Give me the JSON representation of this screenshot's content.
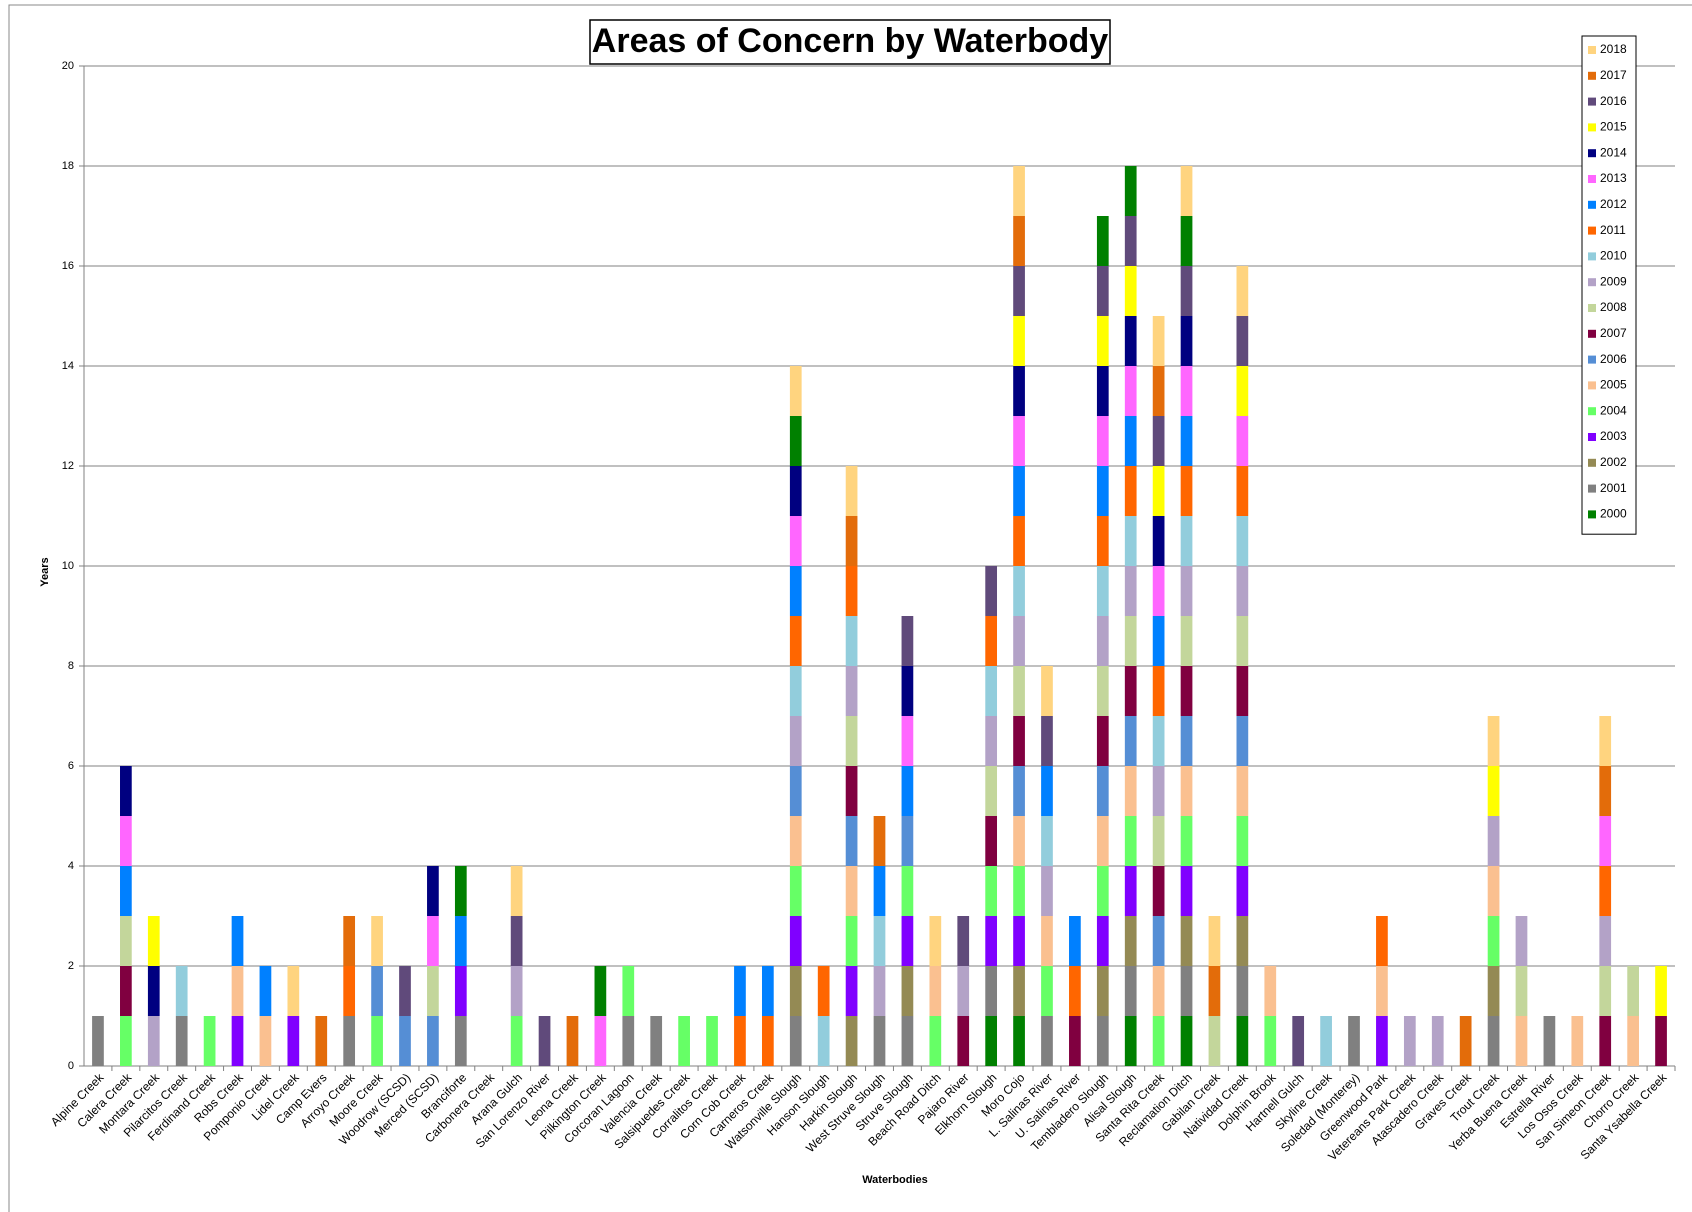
{
  "chart_data": {
    "type": "stacked_bar",
    "title": "Areas of Concern by Waterbody",
    "x_label": "Waterbodies",
    "y_label": "Years",
    "categories": [
      "Alpine Creek",
      "Calera Creek",
      "Montara Creek",
      "Pilarcitos Creek",
      "Ferdinand Creek",
      "Robs Creek",
      "Pomponio Creek",
      "Lidel Creek",
      "Camp Evers",
      "Arroyo Creek",
      "Moore Creek",
      "Woodrow (SCSD)",
      "Merced (SCSD)",
      "Branciforte",
      "Carbonera Creek",
      "Arana Gulch",
      "San Lorenzo River",
      "Leona Creek",
      "Pilkington Creek",
      "Corcoran Lagoon",
      "Valencia Creek",
      "Salsipuedes Creek",
      "Corralitos Creek",
      "Corn Cob Creek",
      "Carneros Creek",
      "Watsonville Slough",
      "Hanson Slough",
      "Harkin Slough",
      "West Struve Slough",
      "Struve Slough",
      "Beach Road Ditch",
      "Pajaro River",
      "Elkhorn Slough",
      "Moro Cojo",
      "L. Salinas River",
      "U. Salinas River",
      "Tembladero Slough",
      "Alisal Slough",
      "Santa Rita Creek",
      "Reclamation Ditch",
      "Gabilan Creek",
      "Natividad Creek",
      "Dolphin Brook",
      "Hartnell Gulch",
      "Skyline Creek",
      "Soledad (Monterey)",
      "Greenwood Park",
      "Vetereans Park Creek",
      "Atascadero Creek",
      "Graves Creek",
      "Trout Creek",
      "Yerba Buena Creek",
      "Estrella River",
      "Los Osos Creek",
      "San Simeon Creek",
      "Chorro Creek",
      "Santa Ysabella Creek"
    ],
    "series": [
      {
        "name": "2000",
        "color": "#008000",
        "values": [
          0,
          0,
          0,
          0,
          0,
          0,
          0,
          0,
          0,
          0,
          0,
          0,
          0,
          0,
          0,
          0,
          0,
          0,
          0,
          0,
          0,
          0,
          0,
          0,
          0,
          0,
          0,
          0,
          0,
          0,
          0,
          0,
          1,
          1,
          0,
          0,
          0,
          1,
          0,
          1,
          0,
          1,
          0,
          0,
          0,
          0,
          0,
          0,
          0,
          0,
          0,
          0,
          0,
          0,
          0,
          0,
          0
        ]
      },
      {
        "name": "2001",
        "color": "#808080",
        "values": [
          1,
          0,
          0,
          1,
          0,
          0,
          0,
          0,
          0,
          1,
          0,
          0,
          0,
          1,
          0,
          0,
          0,
          0,
          0,
          1,
          1,
          0,
          0,
          0,
          0,
          1,
          0,
          0,
          1,
          1,
          0,
          0,
          1,
          0,
          1,
          0,
          1,
          1,
          0,
          1,
          0,
          1,
          0,
          0,
          0,
          1,
          0,
          0,
          0,
          0,
          1,
          0,
          1,
          0,
          0,
          0,
          0
        ]
      },
      {
        "name": "2002",
        "color": "#948A54",
        "values": [
          0,
          0,
          0,
          0,
          0,
          0,
          0,
          0,
          0,
          0,
          0,
          0,
          0,
          0,
          0,
          0,
          0,
          0,
          0,
          0,
          0,
          0,
          0,
          0,
          0,
          1,
          0,
          1,
          0,
          1,
          0,
          0,
          0,
          1,
          0,
          0,
          1,
          1,
          0,
          1,
          0,
          1,
          0,
          0,
          0,
          0,
          0,
          0,
          0,
          0,
          1,
          0,
          0,
          0,
          0,
          0,
          0
        ]
      },
      {
        "name": "2003",
        "color": "#8000FF",
        "values": [
          0,
          0,
          0,
          0,
          0,
          1,
          0,
          1,
          0,
          0,
          0,
          0,
          0,
          1,
          0,
          0,
          0,
          0,
          0,
          0,
          0,
          0,
          0,
          0,
          0,
          1,
          0,
          1,
          0,
          1,
          0,
          0,
          1,
          1,
          0,
          0,
          1,
          1,
          0,
          1,
          0,
          1,
          0,
          0,
          0,
          0,
          1,
          0,
          0,
          0,
          0,
          0,
          0,
          0,
          0,
          0,
          0
        ]
      },
      {
        "name": "2004",
        "color": "#66FF66",
        "values": [
          0,
          1,
          0,
          0,
          1,
          0,
          0,
          0,
          0,
          0,
          1,
          0,
          0,
          0,
          0,
          1,
          0,
          0,
          0,
          1,
          0,
          1,
          1,
          0,
          0,
          1,
          0,
          1,
          0,
          1,
          1,
          0,
          1,
          1,
          1,
          0,
          1,
          1,
          1,
          1,
          0,
          1,
          1,
          0,
          0,
          0,
          0,
          0,
          0,
          0,
          1,
          0,
          0,
          0,
          0,
          0,
          0
        ]
      },
      {
        "name": "2005",
        "color": "#FAC090",
        "values": [
          0,
          0,
          0,
          0,
          0,
          1,
          1,
          0,
          0,
          0,
          0,
          0,
          0,
          0,
          0,
          0,
          0,
          0,
          0,
          0,
          0,
          0,
          0,
          0,
          0,
          1,
          0,
          1,
          0,
          0,
          1,
          0,
          0,
          1,
          1,
          0,
          1,
          1,
          1,
          1,
          0,
          1,
          1,
          0,
          0,
          0,
          1,
          0,
          0,
          0,
          1,
          1,
          0,
          1,
          0,
          1,
          0
        ]
      },
      {
        "name": "2006",
        "color": "#558ED5",
        "values": [
          0,
          0,
          0,
          0,
          0,
          0,
          0,
          0,
          0,
          0,
          1,
          1,
          1,
          0,
          0,
          0,
          0,
          0,
          0,
          0,
          0,
          0,
          0,
          0,
          0,
          1,
          0,
          1,
          0,
          1,
          0,
          0,
          0,
          1,
          0,
          0,
          1,
          1,
          1,
          1,
          0,
          1,
          0,
          0,
          0,
          0,
          0,
          0,
          0,
          0,
          0,
          0,
          0,
          0,
          0,
          0,
          0
        ]
      },
      {
        "name": "2007",
        "color": "#800040",
        "values": [
          0,
          1,
          0,
          0,
          0,
          0,
          0,
          0,
          0,
          0,
          0,
          0,
          0,
          0,
          0,
          0,
          0,
          0,
          0,
          0,
          0,
          0,
          0,
          0,
          0,
          0,
          0,
          1,
          0,
          0,
          0,
          1,
          1,
          1,
          0,
          1,
          1,
          1,
          1,
          1,
          0,
          1,
          0,
          0,
          0,
          0,
          0,
          0,
          0,
          0,
          0,
          0,
          0,
          0,
          1,
          0,
          1
        ]
      },
      {
        "name": "2008",
        "color": "#C3D69B",
        "values": [
          0,
          1,
          0,
          0,
          0,
          0,
          0,
          0,
          0,
          0,
          0,
          0,
          1,
          0,
          0,
          0,
          0,
          0,
          0,
          0,
          0,
          0,
          0,
          0,
          0,
          0,
          0,
          1,
          0,
          0,
          0,
          0,
          1,
          1,
          0,
          0,
          1,
          1,
          1,
          1,
          1,
          1,
          0,
          0,
          0,
          0,
          0,
          0,
          0,
          0,
          0,
          1,
          0,
          0,
          1,
          1,
          0
        ]
      },
      {
        "name": "2009",
        "color": "#B3A2C7",
        "values": [
          0,
          0,
          1,
          0,
          0,
          0,
          0,
          0,
          0,
          0,
          0,
          0,
          0,
          0,
          0,
          1,
          0,
          0,
          0,
          0,
          0,
          0,
          0,
          0,
          0,
          1,
          0,
          1,
          1,
          0,
          0,
          1,
          1,
          1,
          1,
          0,
          1,
          1,
          1,
          1,
          0,
          1,
          0,
          0,
          0,
          0,
          0,
          1,
          1,
          0,
          1,
          1,
          0,
          0,
          1,
          0,
          0
        ]
      },
      {
        "name": "2010",
        "color": "#92CDDC",
        "values": [
          0,
          0,
          0,
          1,
          0,
          0,
          0,
          0,
          0,
          0,
          0,
          0,
          0,
          0,
          0,
          0,
          0,
          0,
          0,
          0,
          0,
          0,
          0,
          0,
          0,
          1,
          1,
          1,
          1,
          0,
          0,
          0,
          1,
          1,
          1,
          0,
          1,
          1,
          1,
          1,
          0,
          1,
          0,
          0,
          1,
          0,
          0,
          0,
          0,
          0,
          0,
          0,
          0,
          0,
          0,
          0,
          0
        ]
      },
      {
        "name": "2011",
        "color": "#FF6600",
        "values": [
          0,
          0,
          0,
          0,
          0,
          0,
          0,
          0,
          0,
          1,
          0,
          0,
          0,
          0,
          0,
          0,
          0,
          0,
          0,
          0,
          0,
          0,
          0,
          1,
          1,
          1,
          1,
          1,
          0,
          0,
          0,
          0,
          1,
          1,
          0,
          1,
          1,
          1,
          1,
          1,
          0,
          1,
          0,
          0,
          0,
          0,
          1,
          0,
          0,
          0,
          0,
          0,
          0,
          0,
          1,
          0,
          0
        ]
      },
      {
        "name": "2012",
        "color": "#0080FF",
        "values": [
          0,
          1,
          0,
          0,
          0,
          1,
          1,
          0,
          0,
          0,
          0,
          0,
          0,
          1,
          0,
          0,
          0,
          0,
          0,
          0,
          0,
          0,
          0,
          1,
          1,
          1,
          0,
          0,
          1,
          1,
          0,
          0,
          0,
          1,
          1,
          1,
          1,
          1,
          1,
          1,
          0,
          0,
          0,
          0,
          0,
          0,
          0,
          0,
          0,
          0,
          0,
          0,
          0,
          0,
          0,
          0,
          0
        ]
      },
      {
        "name": "2013",
        "color": "#FF66FF",
        "values": [
          0,
          1,
          0,
          0,
          0,
          0,
          0,
          0,
          0,
          0,
          0,
          0,
          1,
          0,
          0,
          0,
          0,
          0,
          1,
          0,
          0,
          0,
          0,
          0,
          0,
          1,
          0,
          0,
          0,
          1,
          0,
          0,
          0,
          1,
          0,
          0,
          1,
          1,
          1,
          1,
          0,
          1,
          0,
          0,
          0,
          0,
          0,
          0,
          0,
          0,
          0,
          0,
          0,
          0,
          1,
          0,
          0
        ]
      },
      {
        "name": "2014",
        "color": "#000080",
        "values": [
          0,
          1,
          1,
          0,
          0,
          0,
          0,
          0,
          0,
          0,
          0,
          0,
          1,
          0,
          0,
          0,
          0,
          0,
          0,
          0,
          0,
          0,
          0,
          0,
          0,
          1,
          0,
          0,
          0,
          1,
          0,
          0,
          0,
          1,
          0,
          0,
          1,
          1,
          1,
          1,
          0,
          0,
          0,
          0,
          0,
          0,
          0,
          0,
          0,
          0,
          0,
          0,
          0,
          0,
          0,
          0,
          0
        ]
      },
      {
        "name": "2015",
        "color": "#FFFF00",
        "values": [
          0,
          0,
          1,
          0,
          0,
          0,
          0,
          0,
          0,
          0,
          0,
          0,
          0,
          0,
          0,
          0,
          0,
          0,
          0,
          0,
          0,
          0,
          0,
          0,
          0,
          0,
          0,
          0,
          0,
          0,
          0,
          0,
          0,
          1,
          0,
          0,
          1,
          1,
          1,
          0,
          0,
          1,
          0,
          0,
          0,
          0,
          0,
          0,
          0,
          0,
          1,
          0,
          0,
          0,
          0,
          0,
          1
        ]
      },
      {
        "name": "2016",
        "color": "#604A7B",
        "values": [
          0,
          0,
          0,
          0,
          0,
          0,
          0,
          0,
          0,
          0,
          0,
          1,
          0,
          0,
          0,
          1,
          1,
          0,
          0,
          0,
          0,
          0,
          0,
          0,
          0,
          0,
          0,
          0,
          0,
          1,
          0,
          1,
          1,
          1,
          1,
          0,
          1,
          1,
          1,
          1,
          0,
          1,
          0,
          1,
          0,
          0,
          0,
          0,
          0,
          0,
          0,
          0,
          0,
          0,
          0,
          0,
          0
        ]
      },
      {
        "name": "2017",
        "color": "#E36C0A",
        "values": [
          0,
          0,
          0,
          0,
          0,
          0,
          0,
          0,
          1,
          1,
          0,
          0,
          0,
          0,
          0,
          0,
          0,
          1,
          0,
          0,
          0,
          0,
          0,
          0,
          0,
          0,
          0,
          1,
          1,
          0,
          0,
          0,
          0,
          1,
          0,
          0,
          0,
          0,
          1,
          0,
          1,
          0,
          0,
          0,
          0,
          0,
          0,
          0,
          0,
          1,
          0,
          0,
          0,
          0,
          1,
          0,
          0
        ]
      },
      {
        "color": "#008000",
        "values": [
          0,
          0,
          0,
          0,
          0,
          0,
          0,
          0,
          0,
          0,
          0,
          0,
          0,
          1,
          0,
          0,
          0,
          0,
          1,
          0,
          0,
          0,
          0,
          0,
          0,
          1,
          0,
          0,
          0,
          0,
          0,
          0,
          0,
          0,
          0,
          0,
          1,
          1,
          0,
          1,
          0,
          0,
          0,
          0,
          0,
          0,
          0,
          0,
          0,
          0,
          0,
          0,
          0,
          0,
          0,
          0,
          0
        ]
      },
      {
        "name": "2018",
        "color": "#FFD47F",
        "values": [
          0,
          0,
          0,
          0,
          0,
          0,
          0,
          1,
          0,
          0,
          1,
          0,
          0,
          0,
          0,
          1,
          0,
          0,
          0,
          0,
          0,
          0,
          0,
          0,
          0,
          1,
          0,
          1,
          0,
          0,
          1,
          0,
          0,
          1,
          1,
          0,
          0,
          0,
          1,
          1,
          1,
          1,
          0,
          0,
          0,
          0,
          0,
          0,
          0,
          0,
          1,
          0,
          0,
          0,
          1,
          0,
          0
        ]
      }
    ],
    "ylim": [
      0,
      20
    ],
    "yticks": [
      0,
      2,
      4,
      6,
      8,
      10,
      12,
      14,
      16,
      18,
      20
    ],
    "grid": true,
    "legend": "top-right"
  }
}
